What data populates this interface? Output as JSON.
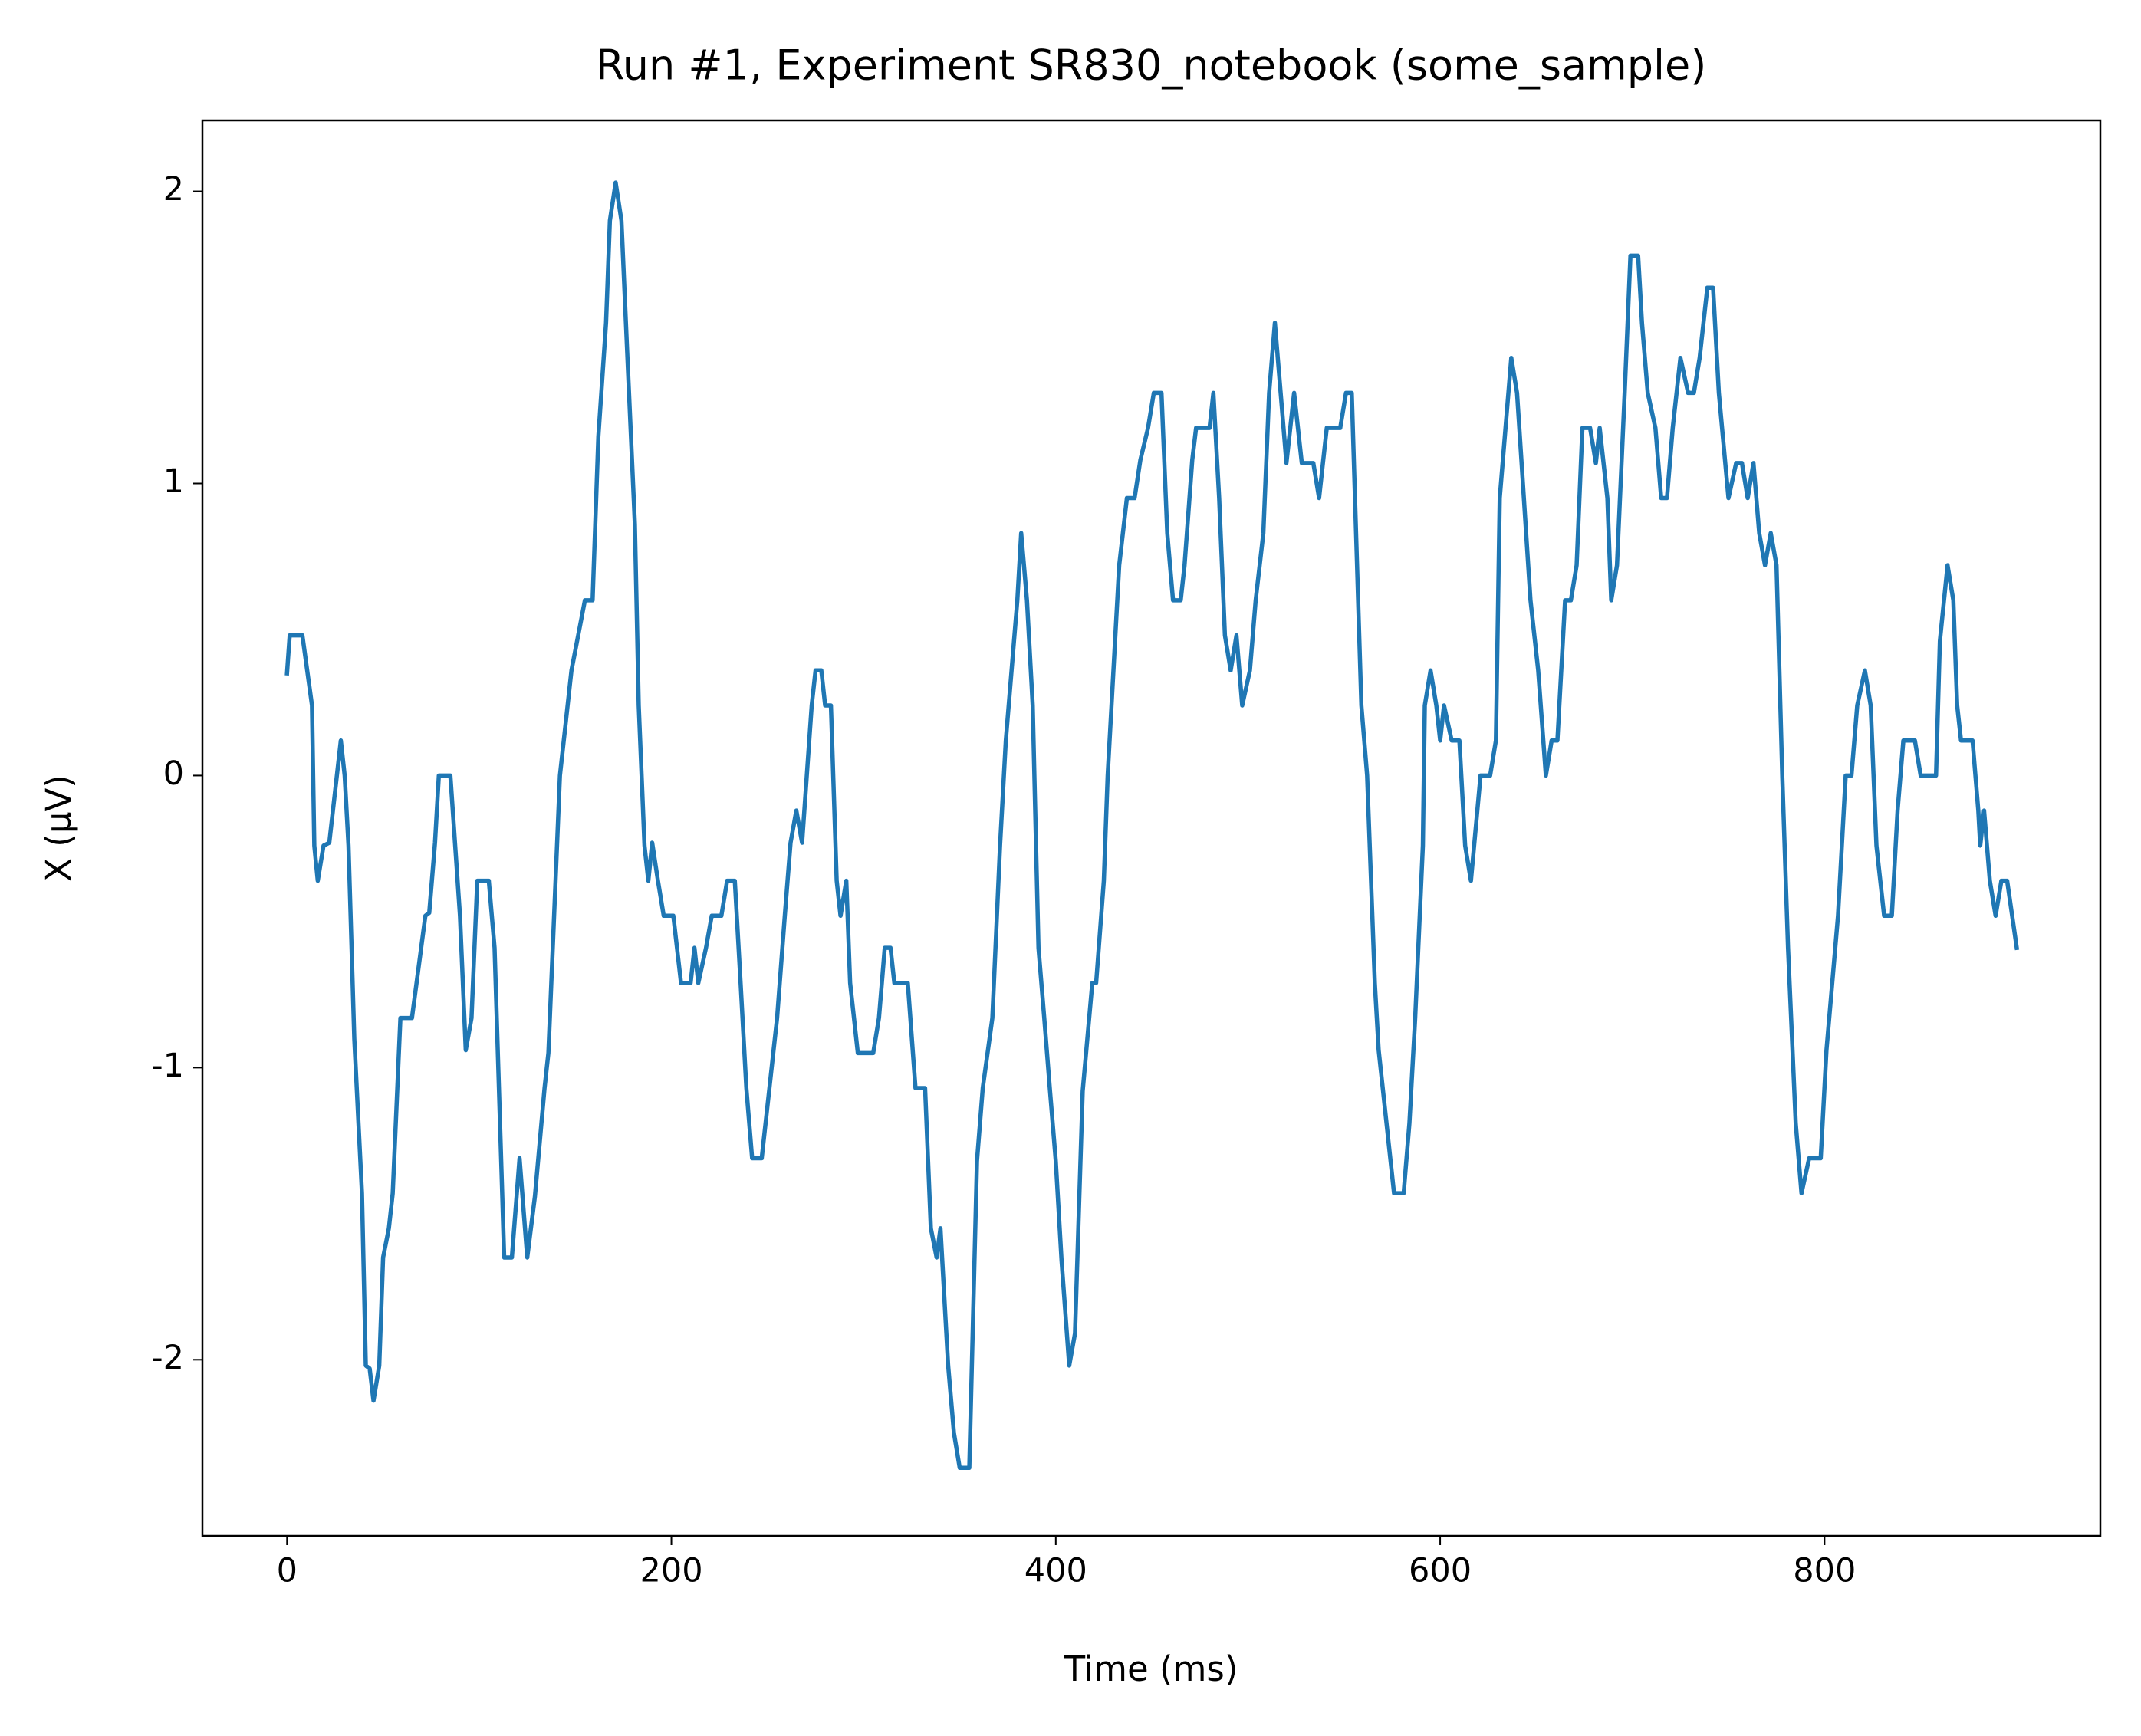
{
  "chart_data": {
    "type": "line",
    "title": "Run #1, Experiment SR830_notebook (some_sample)",
    "xlabel": "Time (ms)",
    "ylabel": "X (μV)",
    "color": "#1f77b4",
    "xlim": [
      -44,
      943.5
    ],
    "ylim": [
      -2.603,
      2.243
    ],
    "xticks": [
      0,
      200,
      400,
      600,
      800
    ],
    "yticks": [
      -2,
      -1,
      0,
      1,
      2
    ],
    "x": [
      0,
      1.4,
      8,
      13,
      14.2,
      16,
      19,
      22,
      28,
      30,
      32,
      35,
      39,
      41,
      43,
      45,
      48,
      50,
      53,
      55,
      59,
      65,
      72,
      74,
      77,
      79,
      85,
      90,
      93,
      96,
      99,
      105,
      108,
      113,
      117,
      121,
      125,
      129,
      134,
      136,
      142,
      148,
      155,
      159,
      162,
      166,
      168,
      171,
      174,
      177,
      181,
      183,
      186,
      188,
      190,
      193,
      196,
      201,
      205,
      210,
      212,
      214,
      218,
      221,
      226,
      229,
      233,
      236,
      239,
      242,
      247,
      251,
      255,
      259,
      262,
      265,
      268,
      273,
      275,
      278,
      280,
      283,
      286,
      288,
      291,
      293,
      297,
      305,
      308,
      311,
      314,
      316,
      323,
      327,
      332,
      335,
      338,
      340,
      344,
      347,
      350,
      355,
      359,
      362,
      367,
      371,
      374,
      377,
      380,
      382,
      385,
      388,
      391,
      394,
      397,
      400,
      403,
      407,
      410,
      414,
      419,
      421,
      425,
      427,
      430,
      433,
      437,
      441,
      444,
      448,
      451,
      455,
      458,
      461,
      465,
      467,
      471,
      473,
      480,
      482,
      485,
      488,
      491,
      494,
      497,
      501,
      504,
      508,
      511,
      514,
      517,
      520,
      524,
      528,
      534,
      537,
      541,
      548,
      551,
      554,
      559,
      562,
      566,
      568,
      576,
      581,
      584,
      587,
      591,
      592,
      595,
      598,
      600,
      602,
      606,
      610,
      613,
      616,
      621,
      626,
      629,
      631,
      634,
      637,
      640,
      647,
      651,
      655,
      658,
      661,
      665,
      668,
      671,
      674,
      678,
      681,
      683,
      687,
      689,
      692,
      696,
      699,
      703,
      705,
      708,
      712,
      715,
      718,
      721,
      725,
      729,
      732,
      735,
      739,
      742,
      745,
      750,
      754,
      757,
      760,
      763,
      766,
      769,
      772,
      775,
      778,
      781,
      785,
      788,
      792,
      798,
      801,
      807,
      811,
      814,
      817,
      821,
      824,
      827,
      831,
      835,
      838,
      841,
      847,
      850,
      858,
      860,
      864,
      867,
      869,
      871,
      877,
      880,
      881,
      883,
      886,
      889,
      892,
      895,
      900
    ],
    "values": [
      0.35,
      0.48,
      0.48,
      0.24,
      -0.24,
      -0.36,
      -0.24,
      -0.23,
      0.12,
      0,
      -0.24,
      -0.9,
      -1.43,
      -2.02,
      -2.03,
      -2.14,
      -2.02,
      -1.65,
      -1.55,
      -1.43,
      -0.83,
      -0.83,
      -0.48,
      -0.47,
      -0.23,
      0,
      0,
      -0.48,
      -0.94,
      -0.83,
      -0.36,
      -0.36,
      -0.59,
      -1.65,
      -1.65,
      -1.31,
      -1.65,
      -1.44,
      -1.07,
      -0.95,
      0,
      0.36,
      0.6,
      0.6,
      1.16,
      1.55,
      1.9,
      2.03,
      1.9,
      1.45,
      0.86,
      0.24,
      -0.24,
      -0.36,
      -0.23,
      -0.36,
      -0.48,
      -0.48,
      -0.71,
      -0.71,
      -0.59,
      -0.71,
      -0.59,
      -0.48,
      -0.48,
      -0.36,
      -0.36,
      -0.71,
      -1.07,
      -1.31,
      -1.31,
      -1.07,
      -0.83,
      -0.48,
      -0.23,
      -0.12,
      -0.23,
      0.24,
      0.36,
      0.36,
      0.24,
      0.24,
      -0.36,
      -0.48,
      -0.36,
      -0.71,
      -0.95,
      -0.95,
      -0.83,
      -0.59,
      -0.59,
      -0.71,
      -0.71,
      -1.07,
      -1.07,
      -1.55,
      -1.65,
      -1.55,
      -2.02,
      -2.25,
      -2.37,
      -2.37,
      -1.32,
      -1.07,
      -0.83,
      -0.24,
      0.12,
      0.36,
      0.6,
      0.83,
      0.6,
      0.24,
      -0.59,
      -0.83,
      -1.08,
      -1.32,
      -1.66,
      -2.02,
      -1.91,
      -1.08,
      -0.71,
      -0.71,
      -0.36,
      0,
      0.36,
      0.72,
      0.95,
      0.95,
      1.08,
      1.19,
      1.31,
      1.31,
      0.83,
      0.6,
      0.6,
      0.72,
      1.08,
      1.19,
      1.19,
      1.31,
      0.95,
      0.48,
      0.36,
      0.48,
      0.24,
      0.36,
      0.6,
      0.83,
      1.31,
      1.55,
      1.31,
      1.07,
      1.31,
      1.07,
      1.07,
      0.95,
      1.19,
      1.19,
      1.31,
      1.31,
      0.24,
      0,
      -0.71,
      -0.94,
      -1.43,
      -1.43,
      -1.19,
      -0.83,
      -0.24,
      0.24,
      0.36,
      0.24,
      0.12,
      0.24,
      0.12,
      0.12,
      -0.24,
      -0.36,
      0,
      0,
      0.12,
      0.95,
      1.19,
      1.43,
      1.31,
      0.6,
      0.36,
      0,
      0.12,
      0.12,
      0.6,
      0.6,
      0.72,
      1.19,
      1.19,
      1.07,
      1.19,
      0.95,
      0.6,
      0.72,
      1.31,
      1.78,
      1.78,
      1.55,
      1.31,
      1.19,
      0.95,
      0.95,
      1.19,
      1.43,
      1.31,
      1.31,
      1.43,
      1.67,
      1.67,
      1.31,
      0.95,
      1.07,
      1.07,
      0.95,
      1.07,
      0.83,
      0.72,
      0.83,
      0.72,
      0,
      -0.59,
      -1.19,
      -1.43,
      -1.31,
      -1.31,
      -0.94,
      -0.48,
      0,
      0,
      0.24,
      0.36,
      0.24,
      -0.24,
      -0.48,
      -0.48,
      -0.12,
      0.12,
      0.12,
      0,
      0,
      0.46,
      0.72,
      0.6,
      0.24,
      0.12,
      0.12,
      -0.12,
      -0.24,
      -0.12,
      -0.36,
      -0.48,
      -0.36,
      -0.36,
      -0.59
    ]
  }
}
